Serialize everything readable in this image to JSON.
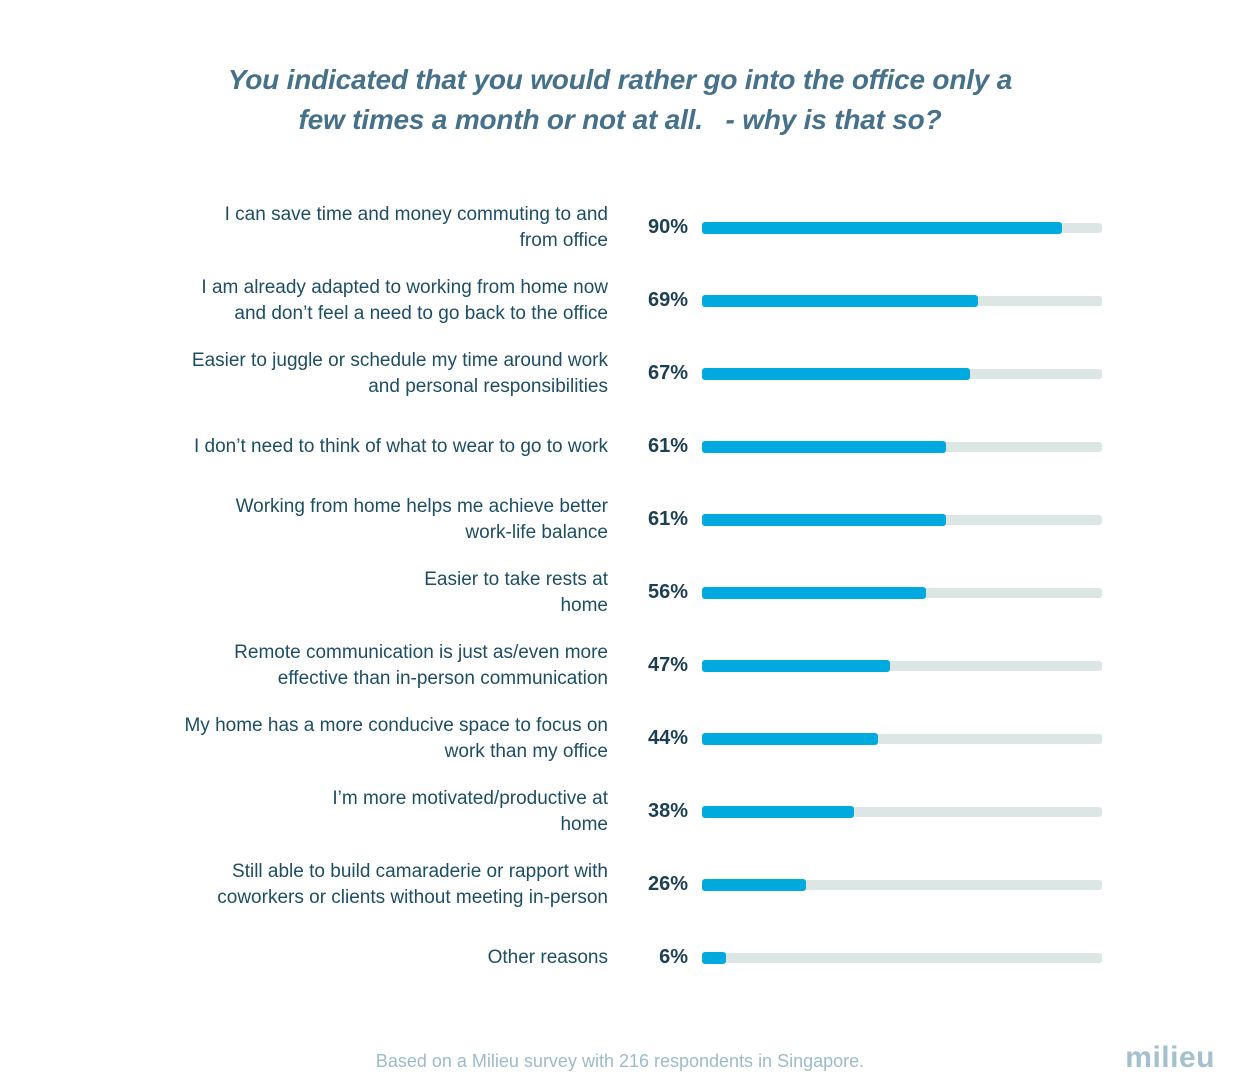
{
  "page": {
    "title": "You indicated that you would rather go into the office only a\nfew times a month or not at all.   - why is that so?",
    "footer": "Based on a Milieu survey with 216 respondents in Singapore.",
    "brand": "milieu"
  },
  "colors": {
    "title_color": "#46718a",
    "label_color": "#1d4e66",
    "percent_color": "#1b3f54",
    "bar_fill_color": "#00a9de",
    "bar_track_color": "#dbe6e5",
    "footer_color": "#9cbbca",
    "brand_color": "#a3c0ce"
  },
  "chart_data": {
    "type": "bar",
    "orientation": "horizontal",
    "title": "You indicated that you would rather go into the office only a few times a month or not at all. - why is that so?",
    "xlabel": "",
    "ylabel": "",
    "value_range": [
      0,
      100
    ],
    "value_suffix": "%",
    "grid": false,
    "legend": false,
    "source_note": "Based on a Milieu survey with 216 respondents in Singapore.",
    "categories": [
      "I can save time and money commuting to and from office",
      "I am already adapted to working from home now and don’t feel a need to go back to the office",
      "Easier to juggle or schedule my time around work and personal responsibilities",
      "I don’t need to think of what to wear to go to work",
      "Working from home helps me achieve better work-life balance",
      "Easier to take rests at home",
      "Remote communication is just as/even more effective than in-person communication",
      "My home has a more conducive space to focus on work than my office",
      "I’m more motivated/productive at home",
      "Still able to build camaraderie or rapport with coworkers or clients without meeting in-person",
      "Other reasons"
    ],
    "values": [
      90,
      69,
      67,
      61,
      61,
      56,
      47,
      44,
      38,
      26,
      6
    ],
    "items": [
      {
        "label": "I can save time and money commuting to and\nfrom office",
        "value": 90,
        "pct_label": "90%"
      },
      {
        "label": "I am already adapted to working from home now\nand don’t feel a need to go back to the office",
        "value": 69,
        "pct_label": "69%"
      },
      {
        "label": "Easier to juggle or schedule my time around work\nand personal responsibilities",
        "value": 67,
        "pct_label": "67%"
      },
      {
        "label": "I don’t need to think of what to wear to go to work",
        "value": 61,
        "pct_label": "61%"
      },
      {
        "label": "Working from home helps me achieve better\nwork-life balance",
        "value": 61,
        "pct_label": "61%"
      },
      {
        "label": "Easier to take rests at\nhome",
        "value": 56,
        "pct_label": "56%"
      },
      {
        "label": "Remote communication is just as/even more\neffective than in-person communication",
        "value": 47,
        "pct_label": "47%"
      },
      {
        "label": "My home has a more conducive space to focus on\nwork than my office",
        "value": 44,
        "pct_label": "44%"
      },
      {
        "label": "I’m more motivated/productive at\nhome",
        "value": 38,
        "pct_label": "38%"
      },
      {
        "label": "Still able to build camaraderie or rapport with\ncoworkers or clients without meeting in-person",
        "value": 26,
        "pct_label": "26%"
      },
      {
        "label": "Other reasons",
        "value": 6,
        "pct_label": "6%"
      }
    ]
  }
}
